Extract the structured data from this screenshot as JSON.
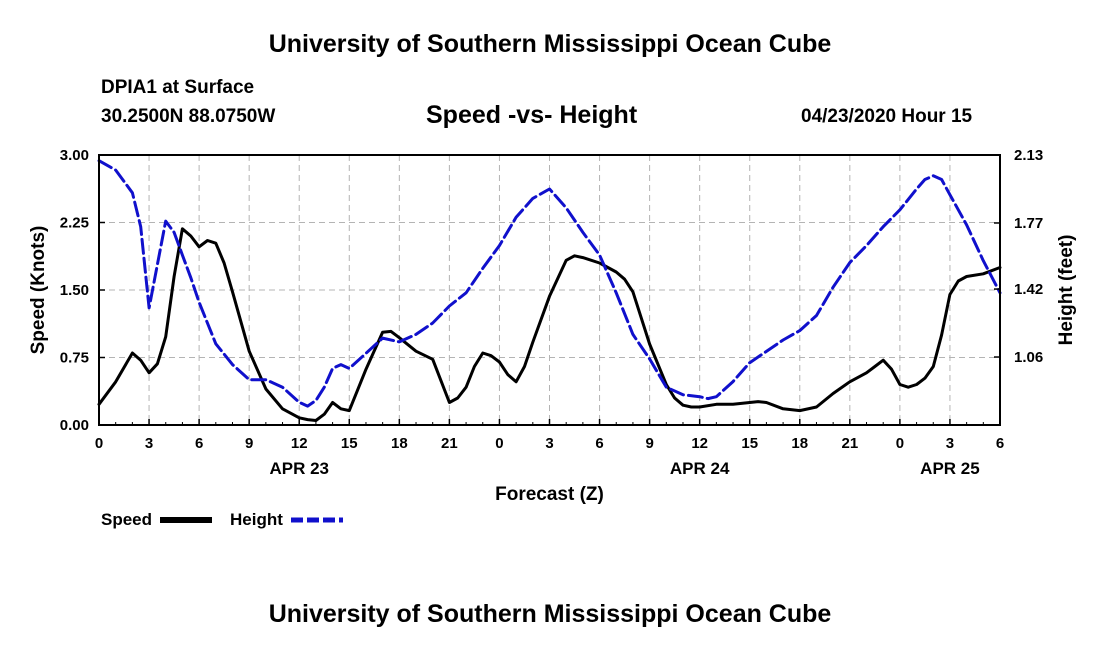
{
  "header": {
    "title": "University of Southern Mississippi Ocean Cube",
    "station": "DPIA1 at Surface",
    "coords": "30.2500N 88.0750W",
    "chart_title": "Speed -vs- Height",
    "datetime": "04/23/2020 Hour 15"
  },
  "footer": {
    "title": "University of Southern Mississippi Ocean Cube"
  },
  "colors": {
    "speed": "#000000",
    "height": "#1010cc",
    "grid": "#b4b4b4"
  },
  "chart_data": {
    "type": "line",
    "title": "Speed -vs- Height",
    "xlabel": "Forecast (Z)",
    "ylabel_left": "Speed (Knots)",
    "ylabel_right": "Height (feet)",
    "x_range": [
      0,
      54
    ],
    "y_left_range": [
      0,
      3
    ],
    "y_right_range": [
      0.7,
      2.13
    ],
    "y_left_ticks": [
      "0.00",
      "0.75",
      "1.50",
      "2.25",
      "3.00"
    ],
    "y_left_tick_values": [
      0,
      0.75,
      1.5,
      2.25,
      3.0
    ],
    "y_right_ticks": [
      "1.06",
      "1.42",
      "1.77",
      "2.13"
    ],
    "y_right_tick_values": [
      1.06,
      1.42,
      1.77,
      2.13
    ],
    "x_ticks": [
      {
        "x": 0,
        "label": "0"
      },
      {
        "x": 3,
        "label": "3"
      },
      {
        "x": 6,
        "label": "6"
      },
      {
        "x": 9,
        "label": "9"
      },
      {
        "x": 12,
        "label": "12"
      },
      {
        "x": 15,
        "label": "15"
      },
      {
        "x": 18,
        "label": "18"
      },
      {
        "x": 21,
        "label": "21"
      },
      {
        "x": 24,
        "label": "0"
      },
      {
        "x": 27,
        "label": "3"
      },
      {
        "x": 30,
        "label": "6"
      },
      {
        "x": 33,
        "label": "9"
      },
      {
        "x": 36,
        "label": "12"
      },
      {
        "x": 39,
        "label": "15"
      },
      {
        "x": 42,
        "label": "18"
      },
      {
        "x": 45,
        "label": "21"
      },
      {
        "x": 48,
        "label": "0"
      },
      {
        "x": 51,
        "label": "3"
      },
      {
        "x": 54,
        "label": "6"
      }
    ],
    "date_labels": [
      {
        "x": 12,
        "label": "APR 23"
      },
      {
        "x": 36,
        "label": "APR 24"
      },
      {
        "x": 51,
        "label": "APR 25"
      }
    ],
    "legend_position": "bottom-left",
    "grid": true,
    "series": [
      {
        "name": "Speed",
        "axis": "left",
        "style": "solid",
        "x": [
          0,
          1,
          2,
          2.5,
          3,
          3.5,
          4,
          4.5,
          5,
          5.5,
          6,
          6.5,
          7,
          7.5,
          8,
          9,
          10,
          11,
          12,
          12.5,
          13,
          13.5,
          14,
          14.5,
          15,
          16,
          17,
          17.5,
          18,
          19,
          20,
          21,
          21.5,
          22,
          22.5,
          23,
          23.5,
          24,
          24.5,
          25,
          25.5,
          26,
          27,
          28,
          28.5,
          29,
          30,
          31,
          31.5,
          32,
          33,
          34,
          34.5,
          35,
          35.5,
          36,
          37,
          38,
          38.5,
          39,
          39.5,
          40,
          41,
          42,
          43,
          44,
          45,
          46,
          46.5,
          47,
          47.5,
          48,
          48.5,
          49,
          49.5,
          50,
          50.5,
          51,
          51.5,
          52,
          53,
          54
        ],
        "values": [
          0.23,
          0.48,
          0.8,
          0.72,
          0.58,
          0.68,
          0.98,
          1.65,
          2.18,
          2.1,
          1.98,
          2.05,
          2.02,
          1.8,
          1.48,
          0.82,
          0.4,
          0.18,
          0.08,
          0.06,
          0.05,
          0.12,
          0.25,
          0.18,
          0.16,
          0.62,
          1.03,
          1.04,
          0.97,
          0.82,
          0.73,
          0.25,
          0.3,
          0.42,
          0.65,
          0.8,
          0.77,
          0.7,
          0.56,
          0.48,
          0.65,
          0.92,
          1.43,
          1.83,
          1.88,
          1.86,
          1.8,
          1.7,
          1.62,
          1.48,
          0.9,
          0.45,
          0.3,
          0.22,
          0.2,
          0.2,
          0.23,
          0.23,
          0.24,
          0.25,
          0.26,
          0.25,
          0.18,
          0.16,
          0.2,
          0.35,
          0.48,
          0.58,
          0.65,
          0.72,
          0.62,
          0.45,
          0.42,
          0.45,
          0.52,
          0.65,
          1.0,
          1.45,
          1.6,
          1.65,
          1.68,
          1.75
        ]
      },
      {
        "name": "Height",
        "axis": "right",
        "style": "dashed",
        "x": [
          0,
          1,
          2,
          2.5,
          3,
          3.5,
          4,
          4.5,
          5,
          5.5,
          6,
          7,
          8,
          9,
          10,
          11,
          12,
          12.5,
          13,
          13.5,
          14,
          14.5,
          15,
          16,
          17,
          18,
          19,
          20,
          21,
          22,
          23,
          24,
          25,
          26,
          27,
          28,
          29,
          30,
          31,
          32,
          33,
          34,
          35,
          36,
          36.5,
          37,
          38,
          39,
          40,
          41,
          42,
          43,
          44,
          45,
          46,
          47,
          48,
          49,
          49.5,
          50,
          50.5,
          51,
          51.5,
          52,
          53,
          54
        ],
        "values": [
          2.1,
          2.05,
          1.93,
          1.75,
          1.32,
          1.55,
          1.78,
          1.72,
          1.6,
          1.48,
          1.35,
          1.13,
          1.02,
          0.94,
          0.94,
          0.9,
          0.82,
          0.8,
          0.83,
          0.9,
          1.0,
          1.02,
          1.0,
          1.08,
          1.16,
          1.14,
          1.18,
          1.24,
          1.33,
          1.4,
          1.53,
          1.65,
          1.8,
          1.9,
          1.95,
          1.85,
          1.72,
          1.6,
          1.4,
          1.18,
          1.05,
          0.9,
          0.86,
          0.85,
          0.84,
          0.85,
          0.93,
          1.03,
          1.09,
          1.15,
          1.2,
          1.28,
          1.43,
          1.56,
          1.65,
          1.75,
          1.84,
          1.95,
          2.0,
          2.02,
          2.0,
          1.92,
          1.84,
          1.76,
          1.57,
          1.4
        ]
      }
    ]
  },
  "legend": {
    "speed_label": "Speed",
    "height_label": "Height"
  }
}
